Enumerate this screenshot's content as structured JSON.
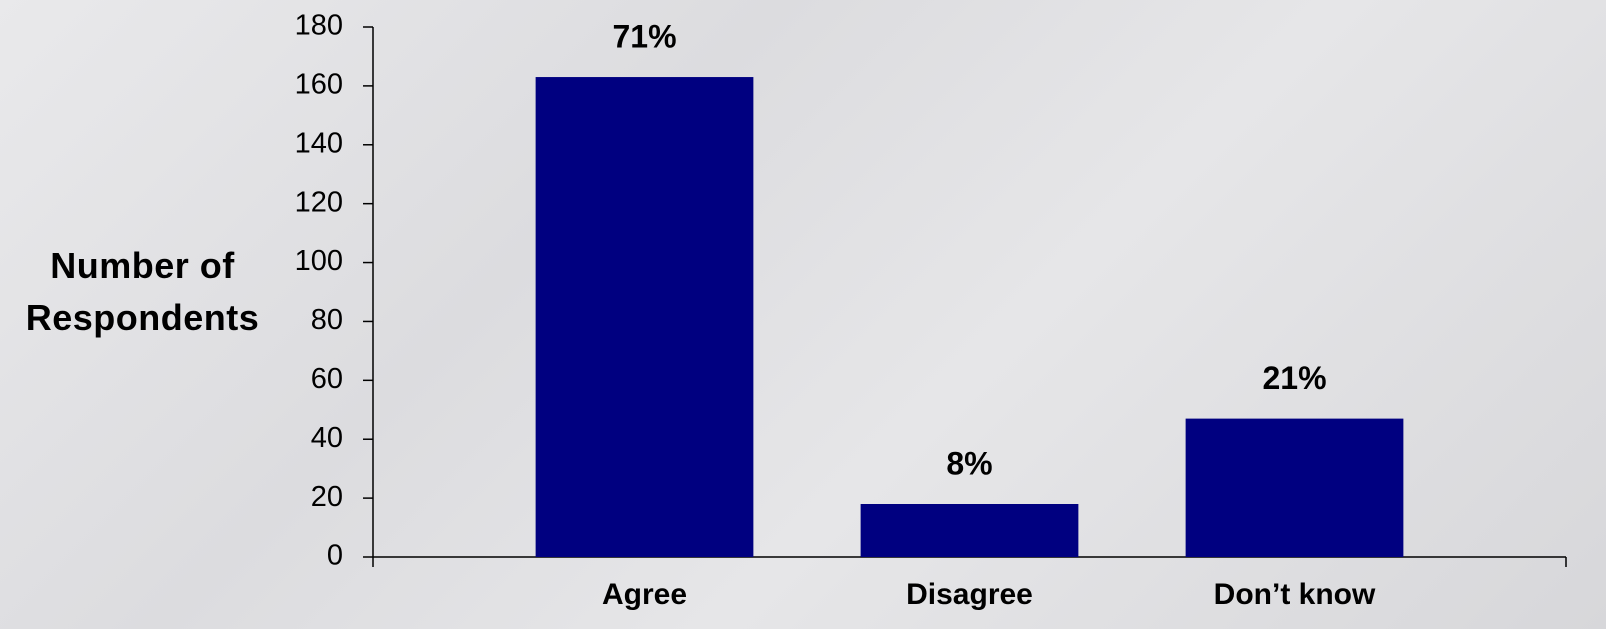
{
  "chart_data": {
    "type": "bar",
    "y_axis_label": "Number of Respondents",
    "categories": [
      "Agree",
      "Disagree",
      "Don’t know"
    ],
    "values": [
      163,
      18,
      47
    ],
    "annotations": [
      "71%",
      "8%",
      "21%"
    ],
    "color": "#000080",
    "ylim": [
      0,
      180
    ],
    "yticks": [
      0,
      20,
      40,
      60,
      80,
      100,
      120,
      140,
      160,
      180
    ]
  }
}
